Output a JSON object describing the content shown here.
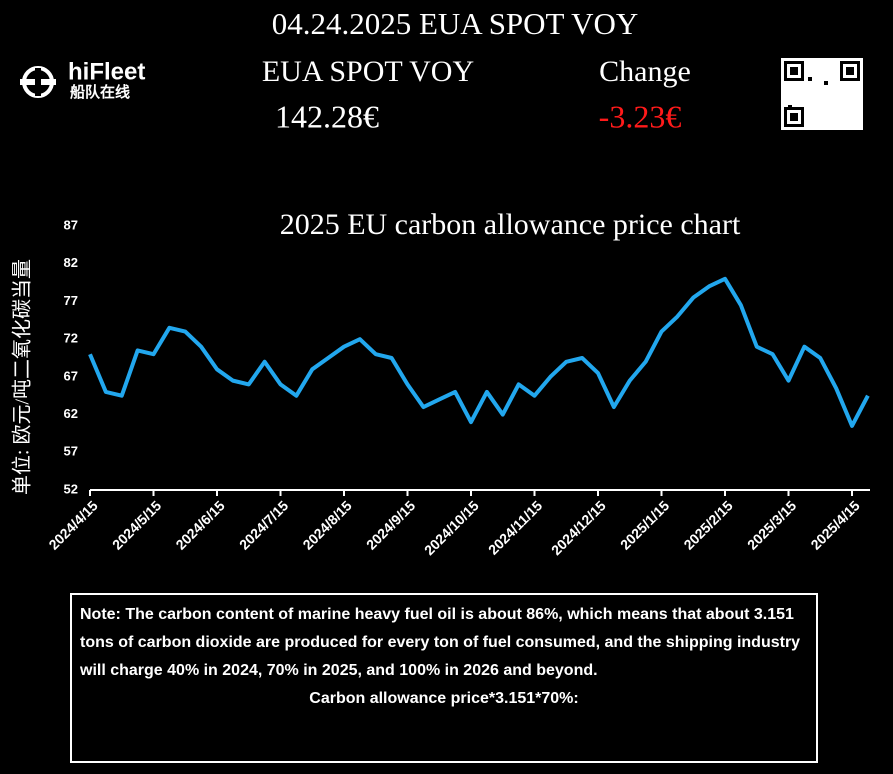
{
  "header": {
    "title": "04.24.2025 EUA SPOT VOY",
    "price_label": "EUA SPOT VOY",
    "change_label": "Change",
    "price": "142.28€",
    "change": "-3.23€"
  },
  "logo": {
    "name": "hiFleet",
    "subtitle": "船队在线"
  },
  "chart_data": {
    "type": "line",
    "title": "2025 EU carbon allowance price chart",
    "y_label": "单位: 欧元/吨二氧化碳当量",
    "color": "#22a7ee",
    "categories": [
      "2024/4/15",
      null,
      null,
      null,
      "2024/5/15",
      null,
      null,
      null,
      "2024/6/15",
      null,
      null,
      null,
      "2024/7/15",
      null,
      null,
      null,
      "2024/8/15",
      null,
      null,
      null,
      "2024/9/15",
      null,
      null,
      null,
      "2024/10/15",
      null,
      null,
      null,
      "2024/11/15",
      null,
      null,
      null,
      "2024/12/15",
      null,
      null,
      null,
      "2025/1/15",
      null,
      null,
      null,
      "2025/2/15",
      null,
      null,
      null,
      "2025/3/15",
      null,
      null,
      null,
      "2025/4/15",
      null
    ],
    "values": [
      70,
      65,
      64.5,
      70.5,
      70,
      73.5,
      73,
      71,
      68,
      66.5,
      66,
      69,
      66,
      64.5,
      68,
      69.5,
      71,
      72,
      70,
      69.5,
      66,
      63,
      64,
      65,
      61,
      65,
      62,
      66,
      64.5,
      67,
      69,
      69.5,
      67.5,
      63,
      66.5,
      69,
      73,
      75,
      77.5,
      79,
      80,
      76.5,
      71,
      70,
      66.5,
      71,
      69.5,
      65.5,
      60.5,
      64.5
    ],
    "ylim": [
      52,
      87
    ],
    "yticks": [
      52,
      57,
      62,
      67,
      72,
      77,
      82,
      87
    ]
  },
  "note": {
    "text": "Note: The carbon content of marine heavy fuel oil is about 86%, which means that about 3.151 tons of carbon dioxide are produced for every ton of fuel consumed, and the shipping industry will charge 40% in 2024, 70% in 2025, and 100% in 2026 and beyond.",
    "formula": "Carbon allowance price*3.151*70%:"
  }
}
